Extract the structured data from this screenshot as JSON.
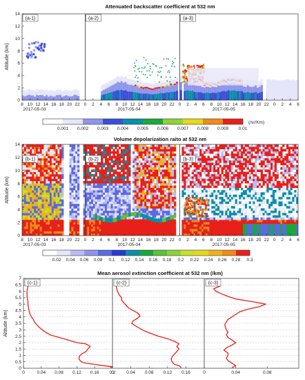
{
  "chart_data": [
    {
      "type": "heatmap",
      "title": "Attenuated backscatter coefficient at 532 nm",
      "ylabel": "Altitude (km)",
      "ylim": [
        0,
        14
      ],
      "yticks": [
        "0",
        "2",
        "4",
        "6",
        "8",
        "10",
        "12",
        "14"
      ],
      "xticks": [
        "8",
        "10",
        "12",
        "14",
        "16",
        "18",
        "20",
        "22",
        "0",
        "2",
        "4",
        "6",
        "8",
        "10",
        "12",
        "14",
        "16",
        "18",
        "20",
        "22",
        "0",
        "2",
        "4",
        "6",
        "8",
        "10",
        "12",
        "14",
        "16",
        "18",
        "20",
        "22",
        "0",
        "2",
        "4",
        "6"
      ],
      "dates": [
        "2017-05-03",
        "2017-05-04",
        "2017-05-05"
      ],
      "subplots": [
        "(a-1)",
        "(a-2)",
        "(a-3)"
      ],
      "colorbar": {
        "ticks": [
          "0.001",
          "0.002",
          "0.003",
          "0.004",
          "0.005",
          "0.006",
          "0.007",
          "0.008",
          "0.009",
          "0.01"
        ],
        "unit": "(/sr/Km)",
        "colors": [
          "#ffffff",
          "#e6e6fa",
          "#8f95ea",
          "#3a4fd8",
          "#0a8fa8",
          "#1aa83c",
          "#8ed23a",
          "#e6d81a",
          "#f08a1a",
          "#e8201a"
        ]
      }
    },
    {
      "type": "heatmap",
      "title": "Volume depolarization raito at 532 nm",
      "ylabel": "Altitude (km)",
      "ylim": [
        0,
        14
      ],
      "yticks": [
        "0",
        "2",
        "4",
        "6",
        "8",
        "10",
        "12",
        "14"
      ],
      "xticks": [
        "8",
        "10",
        "12",
        "14",
        "16",
        "18",
        "20",
        "22",
        "0",
        "2",
        "4",
        "6",
        "8",
        "10",
        "12",
        "14",
        "16",
        "18",
        "20",
        "22",
        "0",
        "2",
        "4",
        "6",
        "8",
        "10",
        "12",
        "14",
        "16",
        "18",
        "20",
        "22",
        "0",
        "2",
        "4",
        "6"
      ],
      "dates": [
        "2017-05-03",
        "2017-05-04",
        "2017-05-05"
      ],
      "subplots": [
        "(b-1)",
        "(b-2)",
        "(b-3)"
      ],
      "colorbar": {
        "ticks": [
          "0.02",
          "0.04",
          "0.06",
          "0.08",
          "0.1",
          "0.12",
          "0.14",
          "0.16",
          "0.18",
          "0.2",
          "0.22",
          "0.24",
          "0.26",
          "0.28",
          "0.3"
        ],
        "colors": [
          "#ffffff",
          "#e6e6fa",
          "#b8bcf2",
          "#8f95ea",
          "#5a6ae0",
          "#2a3ad0",
          "#0a8fa8",
          "#1aa83c",
          "#5cc03a",
          "#8ed23a",
          "#c8e02a",
          "#e6d81a",
          "#f0b01a",
          "#f08a1a",
          "#e8201a"
        ]
      }
    },
    {
      "type": "line",
      "title": "Mean aerosol extinction coefficient at 532 nm (/km)",
      "ylabel": "Altitude (km)",
      "ylim": [
        0,
        7
      ],
      "yticks": [
        "0",
        "0.5",
        "1",
        "1.5",
        "2",
        "2.5",
        "3",
        "3.5",
        "4",
        "4.5",
        "5",
        "5.5",
        "6",
        "6.5",
        "7"
      ],
      "grid": true,
      "color": "#e8201a",
      "panels": [
        {
          "label": "(c-1)",
          "xlim": [
            0,
            0.2
          ],
          "xticks": [
            "0",
            "0.04",
            "0.08",
            "0.12",
            "0.16",
            "0.2"
          ],
          "profile": [
            [
              0.195,
              0.05
            ],
            [
              0.2,
              0.12
            ],
            [
              0.18,
              0.2
            ],
            [
              0.16,
              0.3
            ],
            [
              0.14,
              0.4
            ],
            [
              0.13,
              0.5
            ],
            [
              0.125,
              0.7
            ],
            [
              0.125,
              0.9
            ],
            [
              0.13,
              1.1
            ],
            [
              0.14,
              1.3
            ],
            [
              0.145,
              1.5
            ],
            [
              0.15,
              1.7
            ],
            [
              0.14,
              1.9
            ],
            [
              0.12,
              2.0
            ],
            [
              0.1,
              2.2
            ],
            [
              0.08,
              2.4
            ],
            [
              0.06,
              2.6
            ],
            [
              0.05,
              2.8
            ],
            [
              0.042,
              3.0
            ],
            [
              0.035,
              3.2
            ],
            [
              0.03,
              3.4
            ],
            [
              0.025,
              3.6
            ],
            [
              0.022,
              3.8
            ],
            [
              0.018,
              4.0
            ],
            [
              0.015,
              4.2
            ],
            [
              0.013,
              4.4
            ],
            [
              0.012,
              4.6
            ],
            [
              0.011,
              4.8
            ],
            [
              0.01,
              5.0
            ],
            [
              0.01,
              5.2
            ],
            [
              0.009,
              5.4
            ],
            [
              0.008,
              5.6
            ],
            [
              0.008,
              5.8
            ],
            [
              0.008,
              6.0
            ],
            [
              0.009,
              6.2
            ],
            [
              0.01,
              6.4
            ],
            [
              0.006,
              6.5
            ],
            [
              0.004,
              6.6
            ],
            [
              0.003,
              6.8
            ]
          ]
        },
        {
          "label": "(c-2)",
          "xlim": [
            0,
            0.2
          ],
          "xticks": [
            "0",
            "0.04",
            "0.08",
            "0.12",
            "0.16"
          ],
          "profile": [
            [
              0.15,
              0.05
            ],
            [
              0.145,
              0.2
            ],
            [
              0.135,
              0.3
            ],
            [
              0.13,
              0.5
            ],
            [
              0.128,
              0.7
            ],
            [
              0.13,
              0.9
            ],
            [
              0.135,
              1.1
            ],
            [
              0.14,
              1.3
            ],
            [
              0.145,
              1.5
            ],
            [
              0.14,
              1.7
            ],
            [
              0.145,
              1.9
            ],
            [
              0.135,
              2.1
            ],
            [
              0.12,
              2.3
            ],
            [
              0.1,
              2.5
            ],
            [
              0.085,
              2.7
            ],
            [
              0.07,
              2.9
            ],
            [
              0.06,
              3.1
            ],
            [
              0.05,
              3.3
            ],
            [
              0.042,
              3.5
            ],
            [
              0.045,
              3.7
            ],
            [
              0.055,
              3.9
            ],
            [
              0.06,
              4.1
            ],
            [
              0.055,
              4.3
            ],
            [
              0.045,
              4.5
            ],
            [
              0.035,
              4.7
            ],
            [
              0.03,
              4.9
            ],
            [
              0.025,
              5.1
            ],
            [
              0.02,
              5.3
            ],
            [
              0.02,
              5.5
            ],
            [
              0.015,
              5.7
            ],
            [
              0.012,
              5.9
            ],
            [
              0.01,
              6.1
            ],
            [
              0.008,
              6.4
            ],
            [
              0.004,
              6.8
            ]
          ]
        },
        {
          "label": "(c-3)",
          "xlim": [
            0,
            0.12
          ],
          "xticks": [
            "0",
            "0.04",
            "0.08"
          ],
          "profile": [
            [
              0.035,
              0.05
            ],
            [
              0.04,
              0.2
            ],
            [
              0.035,
              0.4
            ],
            [
              0.03,
              0.6
            ],
            [
              0.028,
              0.8
            ],
            [
              0.03,
              1.0
            ],
            [
              0.03,
              1.2
            ],
            [
              0.025,
              1.4
            ],
            [
              0.028,
              1.6
            ],
            [
              0.035,
              1.8
            ],
            [
              0.04,
              2.0
            ],
            [
              0.035,
              2.2
            ],
            [
              0.03,
              2.4
            ],
            [
              0.028,
              2.6
            ],
            [
              0.03,
              2.8
            ],
            [
              0.028,
              3.0
            ],
            [
              0.027,
              3.2
            ],
            [
              0.026,
              3.4
            ],
            [
              0.028,
              3.6
            ],
            [
              0.03,
              3.8
            ],
            [
              0.035,
              4.0
            ],
            [
              0.04,
              4.2
            ],
            [
              0.045,
              4.4
            ],
            [
              0.055,
              4.6
            ],
            [
              0.07,
              4.8
            ],
            [
              0.078,
              5.0
            ],
            [
              0.06,
              5.2
            ],
            [
              0.04,
              5.4
            ],
            [
              0.03,
              5.6
            ],
            [
              0.022,
              5.8
            ],
            [
              0.015,
              6.0
            ],
            [
              0.012,
              6.2
            ],
            [
              0.02,
              6.4
            ],
            [
              0.008,
              6.6
            ],
            [
              0.004,
              6.8
            ]
          ]
        }
      ]
    }
  ]
}
